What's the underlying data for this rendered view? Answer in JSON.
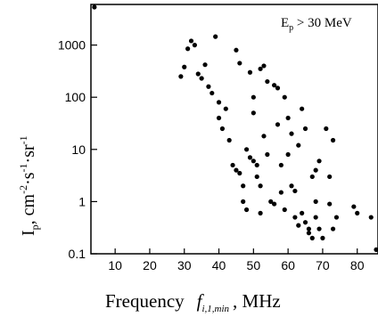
{
  "chart_data": {
    "type": "scatter",
    "annotation": "E_p > 30 MeV",
    "annotation_main": "E",
    "annotation_sub": "p",
    "annotation_rest": " > 30 MeV",
    "xlabel_main": "Frequency",
    "xlabel_symbol": "f",
    "xlabel_sub": "i,1,min",
    "xlabel_unit": ", MHz",
    "ylabel_main": "I",
    "ylabel_sub": "p",
    "ylabel_unit_prefix": ",  cm",
    "ylabel_unit_exp1": "-2",
    "ylabel_unit_mid": "·s",
    "ylabel_unit_exp2": "-1",
    "ylabel_unit_mid2": "·sr",
    "ylabel_unit_exp3": "-1",
    "xlim": [
      3,
      86
    ],
    "ylim": [
      0.1,
      6000
    ],
    "y_scale": "log",
    "x_ticks": [
      10,
      20,
      30,
      40,
      50,
      60,
      70,
      80
    ],
    "y_ticks": [
      0.1,
      1,
      10,
      100,
      1000
    ],
    "y_tick_labels": [
      "0.1",
      "1",
      "10",
      "100",
      "1000"
    ],
    "grid": false,
    "points": [
      [
        4,
        5500
      ],
      [
        29,
        250
      ],
      [
        30,
        380
      ],
      [
        31,
        850
      ],
      [
        32,
        1200
      ],
      [
        33,
        1000
      ],
      [
        34,
        280
      ],
      [
        35,
        230
      ],
      [
        36,
        420
      ],
      [
        37,
        160
      ],
      [
        38,
        120
      ],
      [
        39,
        1450
      ],
      [
        40,
        80
      ],
      [
        40,
        40
      ],
      [
        41,
        25
      ],
      [
        42,
        60
      ],
      [
        43,
        15
      ],
      [
        44,
        5
      ],
      [
        45,
        4
      ],
      [
        45,
        800
      ],
      [
        46,
        450
      ],
      [
        46,
        3.5
      ],
      [
        47,
        2
      ],
      [
        47,
        1
      ],
      [
        48,
        0.7
      ],
      [
        48,
        10
      ],
      [
        49,
        300
      ],
      [
        49,
        7
      ],
      [
        50,
        100
      ],
      [
        50,
        50
      ],
      [
        50,
        6
      ],
      [
        51,
        5
      ],
      [
        51,
        3
      ],
      [
        52,
        350
      ],
      [
        52,
        2
      ],
      [
        52,
        0.6
      ],
      [
        53,
        400
      ],
      [
        53,
        18
      ],
      [
        54,
        200
      ],
      [
        54,
        8
      ],
      [
        55,
        1
      ],
      [
        56,
        0.9
      ],
      [
        56,
        170
      ],
      [
        57,
        150
      ],
      [
        57,
        30
      ],
      [
        58,
        5
      ],
      [
        58,
        1.5
      ],
      [
        59,
        100
      ],
      [
        59,
        0.7
      ],
      [
        60,
        40
      ],
      [
        60,
        8
      ],
      [
        61,
        20
      ],
      [
        61,
        2
      ],
      [
        62,
        1.6
      ],
      [
        62,
        0.5
      ],
      [
        63,
        12
      ],
      [
        63,
        0.35
      ],
      [
        64,
        60
      ],
      [
        64,
        0.6
      ],
      [
        65,
        25
      ],
      [
        65,
        0.4
      ],
      [
        66,
        0.3
      ],
      [
        66,
        0.25
      ],
      [
        67,
        3
      ],
      [
        67,
        0.2
      ],
      [
        68,
        0.5
      ],
      [
        68,
        1
      ],
      [
        68,
        4
      ],
      [
        69,
        6
      ],
      [
        69,
        0.3
      ],
      [
        70,
        0.2
      ],
      [
        71,
        25
      ],
      [
        72,
        3
      ],
      [
        72,
        0.9
      ],
      [
        73,
        15
      ],
      [
        73,
        0.3
      ],
      [
        74,
        0.5
      ],
      [
        79,
        0.8
      ],
      [
        80,
        0.6
      ],
      [
        84,
        0.5
      ],
      [
        86,
        0.12
      ]
    ]
  }
}
